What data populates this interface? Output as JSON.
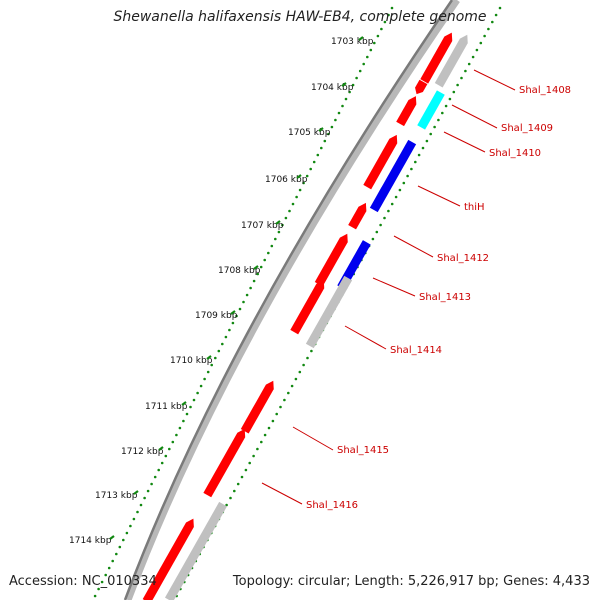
{
  "title": "Shewanella halifaxensis HAW-EB4, complete genome",
  "footer": {
    "accession": "Accession: NC_010334",
    "topology": "Topology: circular; Length: 5,226,917 bp; Genes: 4,433"
  },
  "colors": {
    "backbone": "#8a8a8a",
    "gene_red": "#ff0000",
    "gene_gray": "#c0c0c0",
    "gene_cyan": "#00ffff",
    "gene_blue": "#0000ee",
    "dot_track": "#118811",
    "label": "#cc0000"
  },
  "ticks": [
    {
      "label": "1703 kbp"
    },
    {
      "label": "1704 kbp"
    },
    {
      "label": "1705 kbp"
    },
    {
      "label": "1706 kbp"
    },
    {
      "label": "1707 kbp"
    },
    {
      "label": "1708 kbp"
    },
    {
      "label": "1709 kbp"
    },
    {
      "label": "1710 kbp"
    },
    {
      "label": "1711 kbp"
    },
    {
      "label": "1712 kbp"
    },
    {
      "label": "1713 kbp"
    },
    {
      "label": "1714 kbp"
    }
  ],
  "genes": [
    {
      "label": "Shal_1408"
    },
    {
      "label": "Shal_1409"
    },
    {
      "label": "Shal_1410"
    },
    {
      "label": "thiH"
    },
    {
      "label": "Shal_1412"
    },
    {
      "label": "Shal_1413"
    },
    {
      "label": "Shal_1414"
    },
    {
      "label": "Shal_1415"
    },
    {
      "label": "Shal_1416"
    }
  ]
}
